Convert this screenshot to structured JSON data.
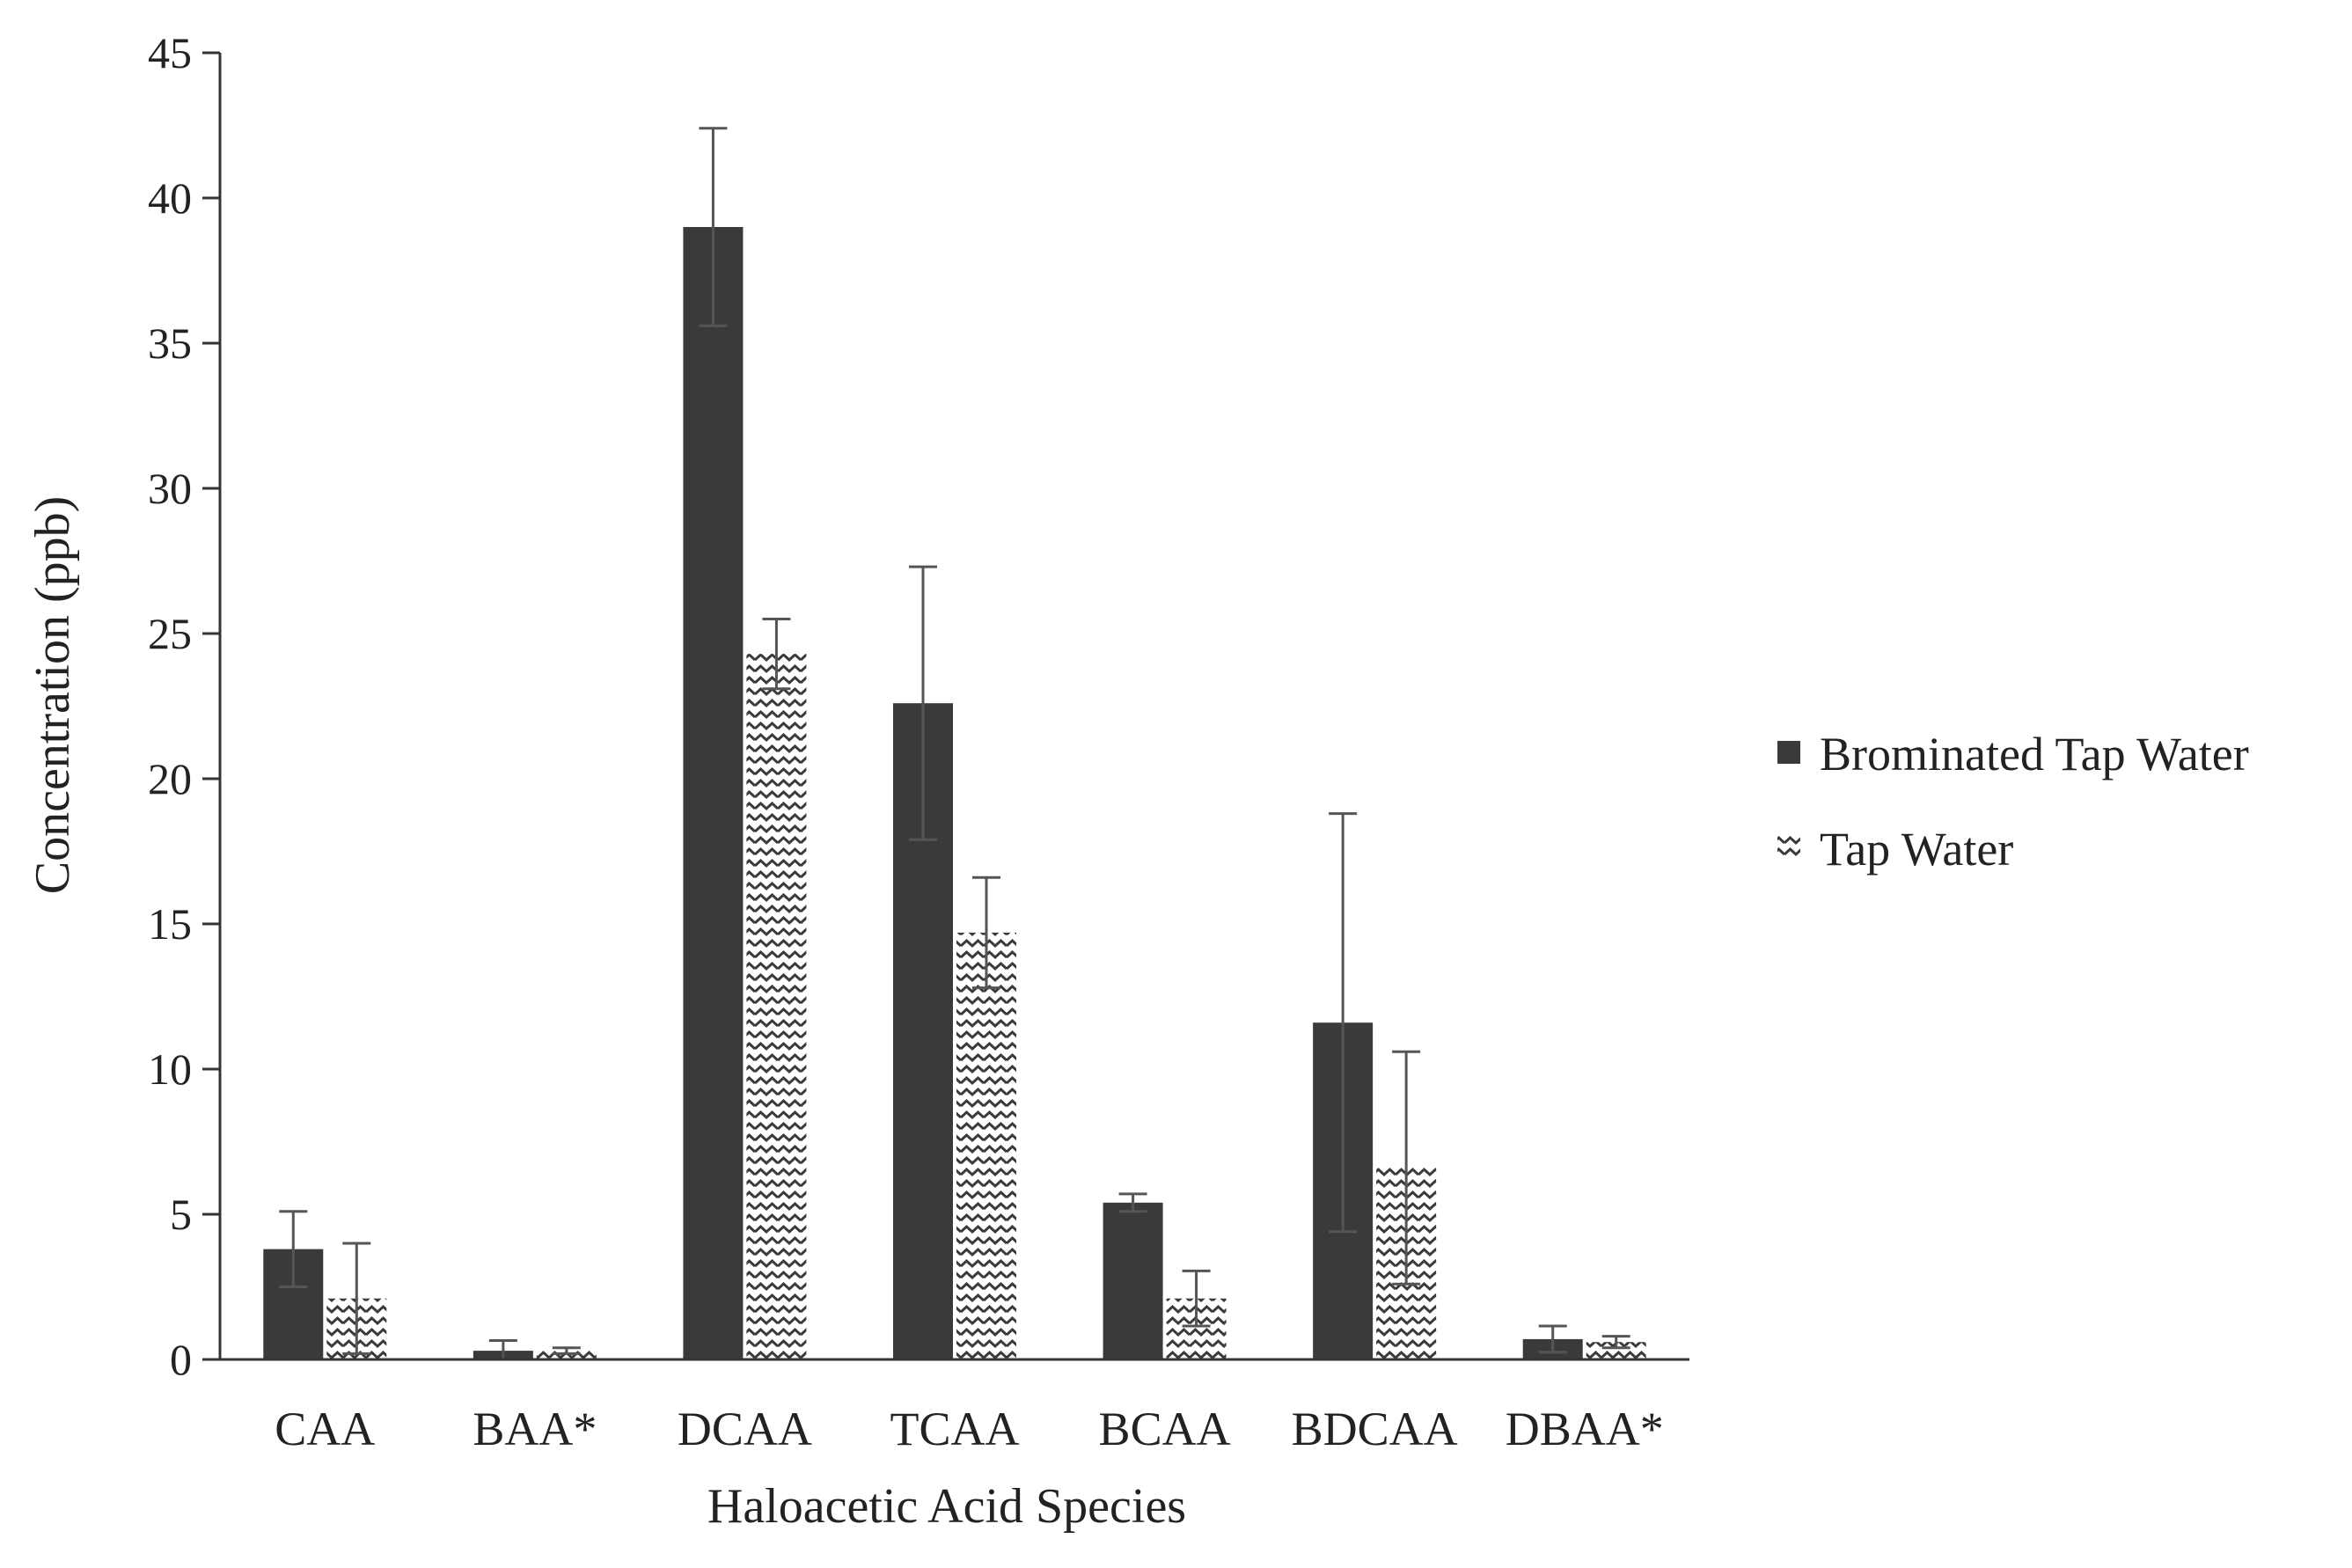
{
  "chart_data": {
    "type": "bar",
    "title": "",
    "xlabel": "Haloacetic Acid Species",
    "ylabel": "Concentration (ppb)",
    "ylim": [
      0,
      45
    ],
    "yticks": [
      0,
      5,
      10,
      15,
      20,
      25,
      30,
      35,
      40,
      45
    ],
    "grid": false,
    "legend_position": "right",
    "categories": [
      "CAA",
      "BAA*",
      "DCAA",
      "TCAA",
      "BCAA",
      "BDCAA",
      "DBAA*"
    ],
    "series": [
      {
        "name": "Brominated Tap Water",
        "color": "#3a3a3a",
        "pattern": "solid",
        "values": [
          3.8,
          0.3,
          39.0,
          22.6,
          5.4,
          11.6,
          0.7
        ],
        "errors": [
          1.3,
          0.35,
          3.4,
          4.7,
          0.3,
          7.2,
          0.45
        ]
      },
      {
        "name": "Tap Water",
        "color": "#ffffff",
        "pattern": "zigzag",
        "values": [
          2.1,
          0.3,
          24.3,
          14.7,
          2.1,
          6.6,
          0.6
        ],
        "errors": [
          1.9,
          0.1,
          1.2,
          1.9,
          0.95,
          4.0,
          0.2
        ]
      }
    ]
  }
}
